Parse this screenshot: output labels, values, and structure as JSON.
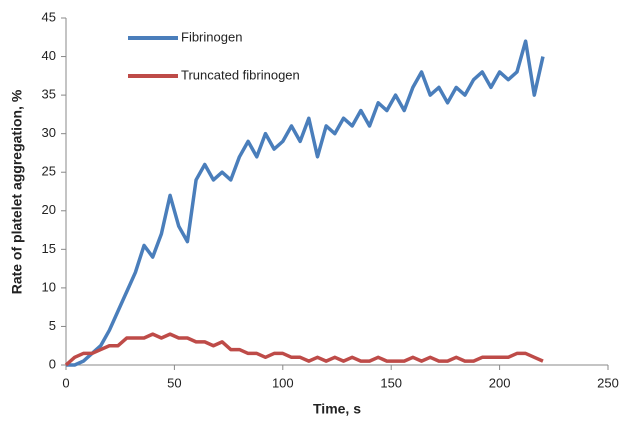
{
  "chart_data": {
    "type": "line",
    "xlabel": "Time, s",
    "ylabel": "Rate of platelet aggregation, %",
    "x": [
      0,
      4,
      8,
      12,
      16,
      20,
      24,
      28,
      32,
      36,
      40,
      44,
      48,
      52,
      56,
      60,
      64,
      68,
      72,
      76,
      80,
      84,
      88,
      92,
      96,
      100,
      104,
      108,
      112,
      116,
      120,
      124,
      128,
      132,
      136,
      140,
      144,
      148,
      152,
      156,
      160,
      164,
      168,
      172,
      176,
      180,
      184,
      188,
      192,
      196,
      200,
      204,
      208,
      212,
      216,
      220
    ],
    "series": [
      {
        "name": "Fibrinogen",
        "color": "#4a7ebb",
        "values": [
          0,
          0,
          0.5,
          1.5,
          2.5,
          4.5,
          7,
          9.5,
          12,
          15.5,
          14,
          17,
          22,
          18,
          16,
          24,
          26,
          24,
          25,
          24,
          27,
          29,
          27,
          30,
          28,
          29,
          31,
          29,
          32,
          27,
          31,
          30,
          32,
          31,
          33,
          31,
          34,
          33,
          35,
          33,
          36,
          38,
          35,
          36,
          34,
          36,
          35,
          37,
          38,
          36,
          38,
          37,
          38,
          42,
          35,
          40
        ]
      },
      {
        "name": "Truncated fibrinogen",
        "color": "#be4b48",
        "values": [
          0,
          1,
          1.5,
          1.5,
          2,
          2.5,
          2.5,
          3.5,
          3.5,
          3.5,
          4,
          3.5,
          4,
          3.5,
          3.5,
          3,
          3,
          2.5,
          3,
          2,
          2,
          1.5,
          1.5,
          1,
          1.5,
          1.5,
          1,
          1,
          0.5,
          1,
          0.5,
          1,
          0.5,
          1,
          0.5,
          0.5,
          1,
          0.5,
          0.5,
          0.5,
          1,
          0.5,
          1,
          0.5,
          0.5,
          1,
          0.5,
          0.5,
          1,
          1,
          1,
          1,
          1.5,
          1.5,
          1,
          0.5
        ]
      }
    ],
    "xlim": [
      0,
      250
    ],
    "xticks": [
      0,
      50,
      100,
      150,
      200,
      250
    ],
    "ylim": [
      0,
      45
    ],
    "yticks": [
      0,
      5,
      10,
      15,
      20,
      25,
      30,
      35,
      40,
      45
    ],
    "grid": false,
    "legend": "upper left"
  }
}
